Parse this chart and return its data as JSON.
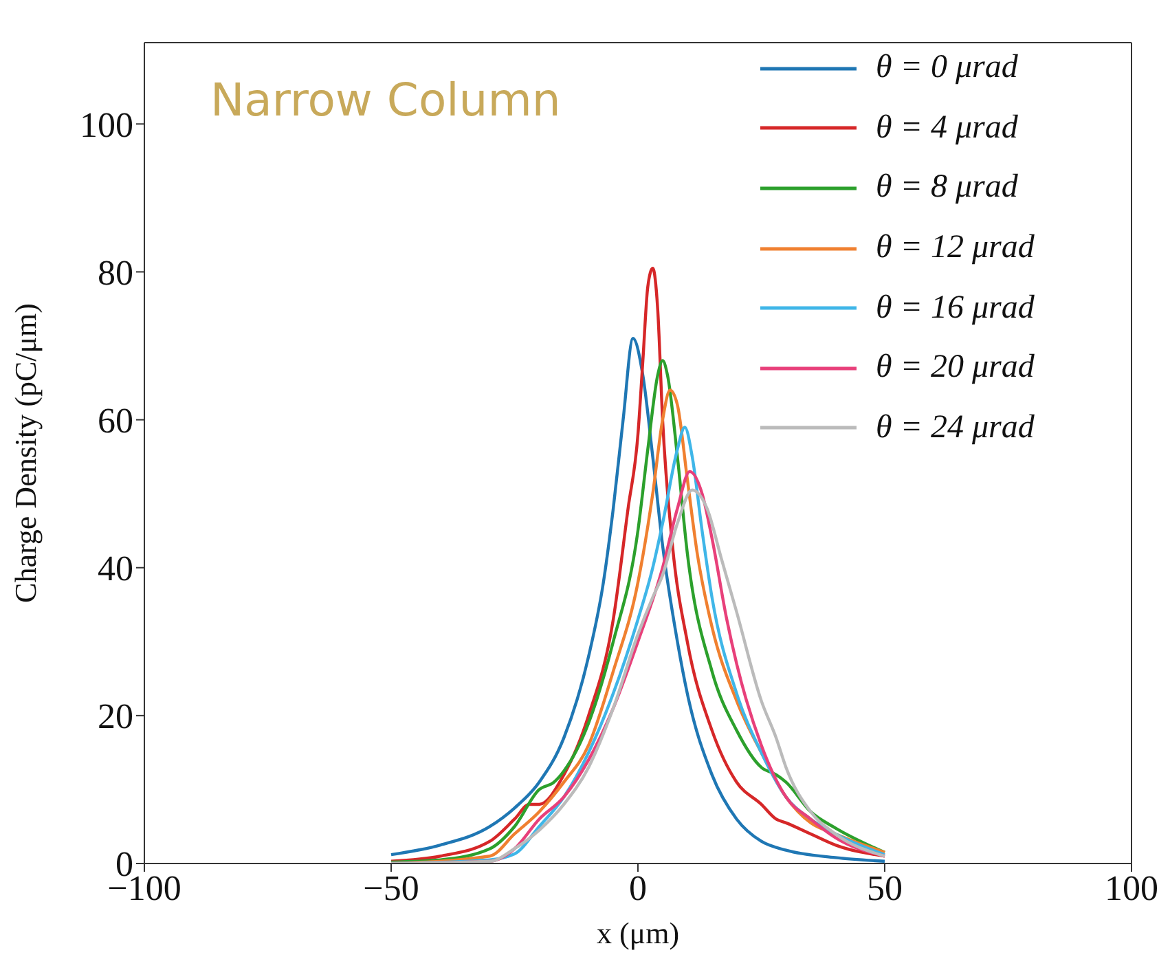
{
  "chart_data": {
    "type": "line",
    "xlabel": "x (μm)",
    "ylabel": "Charge Density (pC/μm)",
    "annotations": [
      "Narrow Column"
    ],
    "xlim": [
      -100,
      100
    ],
    "xticks": [
      -100,
      -50,
      0,
      50,
      100
    ],
    "ylim": [
      0,
      111
    ],
    "yticks": [
      0,
      20,
      40,
      60,
      80,
      100
    ],
    "grid": false,
    "legend": "top right",
    "marker": "none",
    "line_style": "solid",
    "series": [
      {
        "name": "θ = 0 μrad",
        "color": "#1f77b4",
        "x": [
          -50,
          -40,
          -30,
          -25,
          -20,
          -15,
          -10,
          -7,
          -5,
          -3,
          -1,
          1,
          3,
          5,
          8,
          10,
          15,
          20,
          25,
          30,
          40,
          50
        ],
        "values": [
          1.2,
          2.5,
          5,
          7.5,
          11,
          17,
          28,
          38,
          48,
          60,
          71,
          66,
          55,
          43,
          30,
          23,
          12,
          6,
          3,
          1.8,
          0.8,
          0.3
        ]
      },
      {
        "name": "θ = 4 μrad",
        "color": "#d62728",
        "x": [
          -50,
          -40,
          -30,
          -25,
          -22,
          -20,
          -15,
          -10,
          -5,
          -2,
          0,
          1,
          2,
          3,
          4,
          5,
          7,
          10,
          15,
          20,
          25,
          28,
          30,
          35,
          40,
          50
        ],
        "values": [
          0.3,
          1,
          3,
          6,
          8,
          8,
          12,
          20,
          33,
          48,
          58,
          68,
          78,
          80.5,
          75,
          60,
          43,
          30,
          18,
          11,
          8,
          6,
          5.5,
          4,
          2.5,
          1
        ]
      },
      {
        "name": "θ = 8 μrad",
        "color": "#2ca02c",
        "x": [
          -50,
          -40,
          -30,
          -25,
          -20,
          -17,
          -15,
          -10,
          -5,
          0,
          2,
          4,
          5,
          6,
          8,
          10,
          15,
          20,
          25,
          28,
          30,
          35,
          40,
          50
        ],
        "values": [
          0.2,
          0.5,
          2,
          5,
          10,
          11,
          12.5,
          19,
          30,
          45,
          56,
          66,
          68,
          66,
          55,
          42,
          26,
          18,
          13,
          12,
          11,
          7,
          4.8,
          1.5
        ]
      },
      {
        "name": "θ = 12 μrad",
        "color": "#f08030",
        "x": [
          -50,
          -30,
          -25,
          -20,
          -15,
          -10,
          -5,
          0,
          3,
          5,
          6.5,
          8,
          10,
          12,
          15,
          20,
          25,
          30,
          35,
          40,
          50
        ],
        "values": [
          0,
          1,
          4,
          7,
          11,
          16,
          26,
          38,
          50,
          60,
          64,
          62,
          52,
          42,
          32,
          22,
          15,
          9,
          5.5,
          4,
          1.5
        ]
      },
      {
        "name": "θ = 16 μrad",
        "color": "#3fb6e8",
        "x": [
          -50,
          -30,
          -25,
          -20,
          -15,
          -10,
          -5,
          0,
          3,
          5,
          8,
          9.5,
          11,
          13,
          15,
          20,
          25,
          30,
          35,
          40,
          50
        ],
        "values": [
          0,
          0.5,
          1.3,
          5,
          9,
          15,
          23,
          33,
          40,
          46,
          56,
          59,
          55,
          45,
          36,
          23,
          15,
          9,
          6,
          4,
          1.2
        ]
      },
      {
        "name": "θ = 20 μrad",
        "color": "#e8407a",
        "x": [
          -50,
          -30,
          -25,
          -20,
          -15,
          -10,
          -5,
          0,
          5,
          8,
          10.5,
          13,
          15,
          18,
          20,
          25,
          30,
          35,
          40,
          50
        ],
        "values": [
          0,
          0.3,
          2,
          6,
          9,
          14,
          21,
          30,
          40,
          48,
          53,
          50,
          44,
          33,
          27,
          16,
          9,
          6,
          3.5,
          1
        ]
      },
      {
        "name": "θ = 24 μrad",
        "color": "#bbbbbb",
        "x": [
          -50,
          -30,
          -25,
          -20,
          -15,
          -10,
          -5,
          0,
          3,
          5,
          8,
          11,
          14,
          17,
          20,
          25,
          28,
          30,
          35,
          40,
          50
        ],
        "values": [
          0,
          0.3,
          2,
          4.5,
          8,
          13,
          21,
          31,
          36,
          39,
          46,
          50.5,
          48,
          41,
          34,
          22,
          17,
          13,
          7,
          4,
          1
        ]
      }
    ]
  }
}
